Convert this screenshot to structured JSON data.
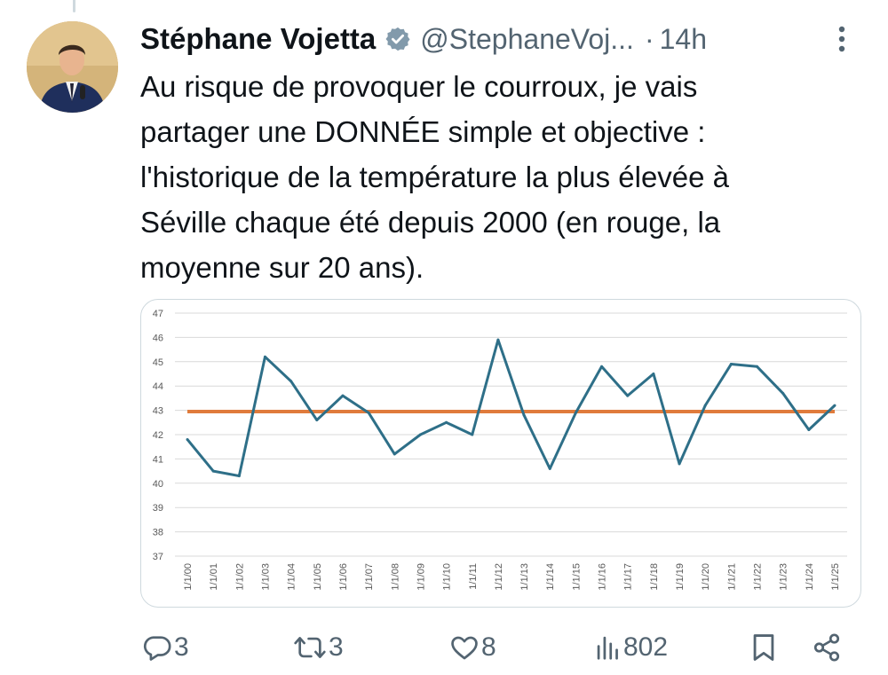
{
  "tweet": {
    "author_name": "Stéphane Vojetta",
    "handle": "@StephaneVoj...",
    "separator": "·",
    "time": "14h",
    "text_lines": [
      "Au risque de provoquer le courroux, je vais",
      "partager une DONNÉE simple et objective :",
      "l'historique de la température la plus élevée à",
      "Séville chaque été depuis 2000 (en rouge, la",
      "moyenne sur 20 ans)."
    ]
  },
  "actions": {
    "replies": "3",
    "reposts": "3",
    "likes": "8",
    "views": "802"
  },
  "colors": {
    "verified": "#829aab",
    "series_line": "#2e6f88",
    "average_line": "#e07b3c",
    "icon_gray": "#536471"
  },
  "icons": [
    "verified-badge-icon",
    "more-icon",
    "reply-icon",
    "repost-icon",
    "like-icon",
    "views-icon",
    "bookmark-icon",
    "share-icon"
  ],
  "chart_data": {
    "type": "line",
    "categories": [
      "1/1/00",
      "1/1/01",
      "1/1/02",
      "1/1/03",
      "1/1/04",
      "1/1/05",
      "1/1/06",
      "1/1/07",
      "1/1/08",
      "1/1/09",
      "1/1/10",
      "1/1/11",
      "1/1/12",
      "1/1/13",
      "1/1/14",
      "1/1/15",
      "1/1/16",
      "1/1/17",
      "1/1/18",
      "1/1/19",
      "1/1/20",
      "1/1/21",
      "1/1/22",
      "1/1/23",
      "1/1/24",
      "1/1/25"
    ],
    "series": [
      {
        "values": [
          41.8,
          40.5,
          40.3,
          45.2,
          44.2,
          42.6,
          43.6,
          42.9,
          41.2,
          42.0,
          42.5,
          42.0,
          45.9,
          42.8,
          40.6,
          42.9,
          44.8,
          43.6,
          44.5,
          40.8,
          43.2,
          44.9,
          44.8,
          43.7,
          42.2,
          43.2
        ]
      },
      {
        "values": [
          42.95,
          42.95,
          42.95,
          42.95,
          42.95,
          42.95,
          42.95,
          42.95,
          42.95,
          42.95,
          42.95,
          42.95,
          42.95,
          42.95,
          42.95,
          42.95,
          42.95,
          42.95,
          42.95,
          42.95,
          42.95,
          42.95,
          42.95,
          42.95,
          42.95,
          42.95
        ]
      }
    ],
    "yticks": [
      "37",
      "38",
      "39",
      "40",
      "41",
      "42",
      "43",
      "44",
      "45",
      "46",
      "47"
    ],
    "ylim": [
      37,
      47
    ],
    "title": "",
    "xlabel": "",
    "ylabel": "",
    "grid": true
  }
}
